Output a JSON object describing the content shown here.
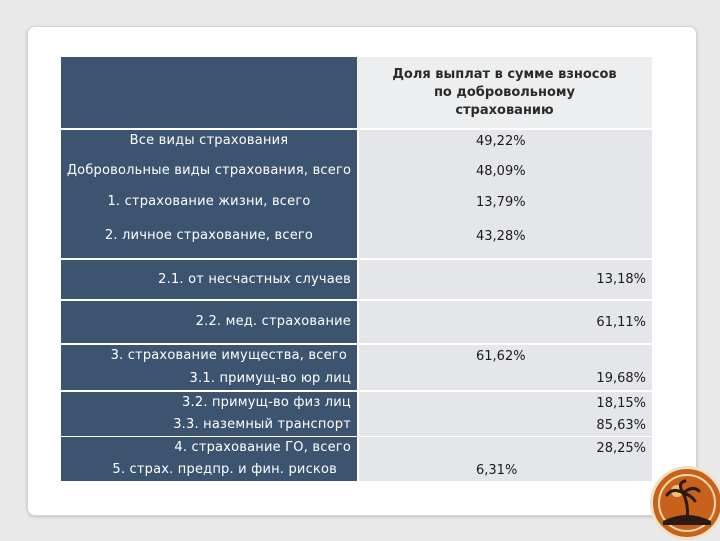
{
  "header": {
    "value_column": "Доля выплат в сумме взносов по добровольному страхованию"
  },
  "rows": [
    {
      "label": "Все виды страхования",
      "value": "49,22%"
    },
    {
      "label": "Добровольные виды страхования, всего",
      "value": "48,09%"
    },
    {
      "label": "1. страхование жизни, всего",
      "value": "13,79%"
    },
    {
      "label": "2. личное страхование, всего",
      "value": "43,28%"
    },
    {
      "label": "2.1. от несчастных случаев",
      "value": "13,18%"
    },
    {
      "label": "2.2. мед. страхование",
      "value": "61,11%"
    },
    {
      "label": "3. страхование имущества, всего",
      "value": "61,62%"
    },
    {
      "label": "3.1. примущ-во юр лиц",
      "value": "19,68%"
    },
    {
      "label": "3.2. примущ-во физ лиц",
      "value": "18,15%"
    },
    {
      "label": "3.3. наземный транспорт",
      "value": "85,63%"
    },
    {
      "label": "4. страхование ГО, всего",
      "value": "28,25%"
    },
    {
      "label": "5. страх. предпр. и фин. рисков",
      "value": "6,31%"
    }
  ],
  "colors": {
    "label_bg": "#3d5470",
    "value_bg": "#e4e6ea",
    "slide_bg": "#ffffff",
    "logo_bg": "#c8611c"
  },
  "icons": [
    "palm-island-logo-icon"
  ]
}
